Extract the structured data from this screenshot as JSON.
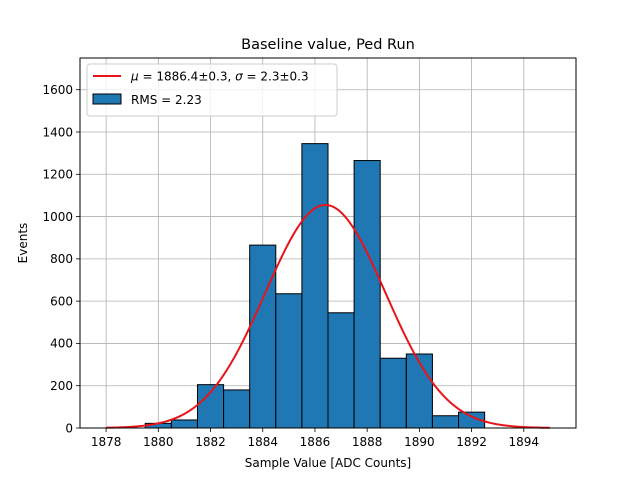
{
  "chart_data": {
    "type": "bar",
    "title": "Baseline value, Ped Run",
    "xlabel": "Sample Value [ADC Counts]",
    "ylabel": "Events",
    "xlim": [
      1877,
      1896
    ],
    "ylim": [
      0,
      1750
    ],
    "x_ticks": [
      1878,
      1880,
      1882,
      1884,
      1886,
      1888,
      1890,
      1892,
      1894
    ],
    "y_ticks": [
      0,
      200,
      400,
      600,
      800,
      1000,
      1200,
      1400,
      1600
    ],
    "grid": true,
    "bins": [
      {
        "left": 1879.5,
        "right": 1880.5,
        "value": 22
      },
      {
        "left": 1880.5,
        "right": 1881.5,
        "value": 38
      },
      {
        "left": 1881.5,
        "right": 1882.5,
        "value": 205
      },
      {
        "left": 1882.5,
        "right": 1883.5,
        "value": 180
      },
      {
        "left": 1883.5,
        "right": 1884.5,
        "value": 865
      },
      {
        "left": 1884.5,
        "right": 1885.5,
        "value": 635
      },
      {
        "left": 1885.5,
        "right": 1886.5,
        "value": 1345
      },
      {
        "left": 1886.5,
        "right": 1887.5,
        "value": 545
      },
      {
        "left": 1887.5,
        "right": 1888.5,
        "value": 1265
      },
      {
        "left": 1888.5,
        "right": 1889.5,
        "value": 330
      },
      {
        "left": 1889.5,
        "right": 1890.5,
        "value": 350
      },
      {
        "left": 1890.5,
        "right": 1891.5,
        "value": 58
      },
      {
        "left": 1891.5,
        "right": 1892.5,
        "value": 75
      }
    ],
    "fit": {
      "mu": 1886.4,
      "sigma": 2.3,
      "amplitude": 1055,
      "x_range": [
        1878,
        1895
      ]
    },
    "legend": {
      "placement": "top-left",
      "entries": [
        {
          "label_mu": "μ",
          "label_eq1": " = 1886.4±0.3, ",
          "label_sigma": "σ",
          "label_eq2": " = 2.3±0.3",
          "color": "#e8141a",
          "kind": "line"
        },
        {
          "label": "RMS = 2.23",
          "color": "#1f77b4",
          "kind": "patch"
        }
      ]
    },
    "colors": {
      "bar": "#1f77b4",
      "bar_edge": "#000000",
      "fit": "#e8141a",
      "grid": "#b0b0b0"
    }
  }
}
